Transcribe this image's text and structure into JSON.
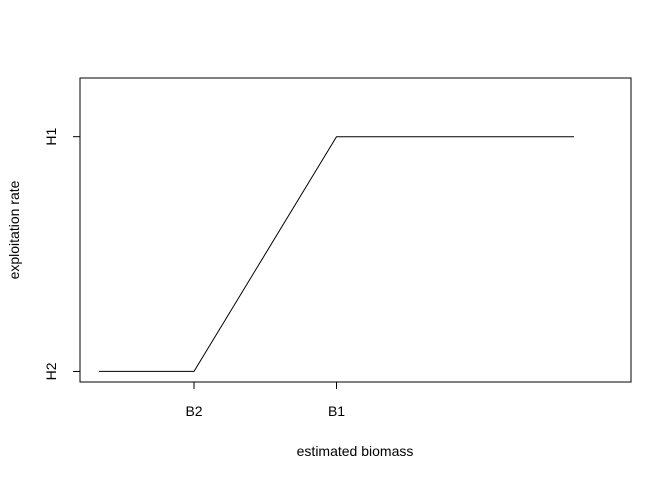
{
  "chart_data": {
    "type": "line",
    "title": "",
    "xlabel": "estimated biomass",
    "ylabel": "exploitation rate",
    "x_ticks": [
      {
        "label": "B2",
        "value": 2
      },
      {
        "label": "B1",
        "value": 5
      }
    ],
    "y_ticks": [
      {
        "label": "H2",
        "value": 0.1
      },
      {
        "label": "H1",
        "value": 0.5
      }
    ],
    "xlim": [
      -0.4,
      11.2
    ],
    "ylim": [
      0.082,
      0.6
    ],
    "grid": false,
    "series": [
      {
        "x": [
          0,
          2,
          5,
          10
        ],
        "y": [
          0.1,
          0.1,
          0.5,
          0.5
        ]
      }
    ]
  }
}
